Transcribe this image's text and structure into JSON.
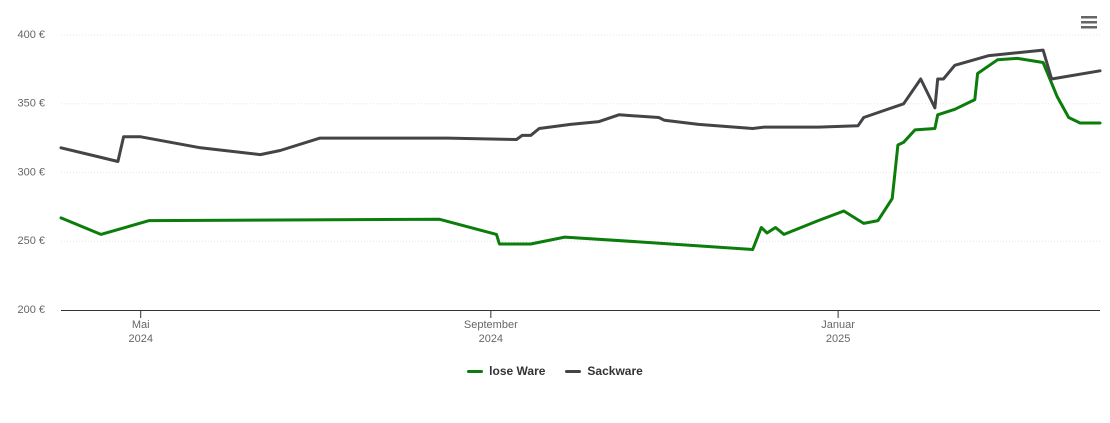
{
  "chart_data": {
    "type": "line",
    "series": [
      {
        "name": "lose Ware",
        "color": "#0a7d0a",
        "x": [
          "2024-04-03",
          "2024-04-17",
          "2024-05-04",
          "2024-08-14",
          "2024-09-03",
          "2024-09-04",
          "2024-09-15",
          "2024-09-27",
          "2024-10-27",
          "2024-12-02",
          "2024-12-05",
          "2024-12-07",
          "2024-12-10",
          "2024-12-13",
          "2024-12-25",
          "2025-01-03",
          "2025-01-10",
          "2025-01-15",
          "2025-01-20",
          "2025-01-22",
          "2025-01-24",
          "2025-01-28",
          "2025-02-04",
          "2025-02-05",
          "2025-02-11",
          "2025-02-18",
          "2025-02-19",
          "2025-02-26",
          "2025-03-05",
          "2025-03-14",
          "2025-03-19",
          "2025-03-23",
          "2025-03-27",
          "2025-04-03"
        ],
        "values": [
          267,
          255,
          265,
          266,
          255,
          248,
          248,
          253,
          249,
          244,
          260,
          256,
          260,
          255,
          265,
          272,
          263,
          265,
          281,
          320,
          322,
          331,
          332,
          342,
          346,
          353,
          372,
          382,
          383,
          380,
          355,
          340,
          336,
          336
        ]
      },
      {
        "name": "Sackware",
        "color": "#444448",
        "x": [
          "2024-04-03",
          "2024-04-15",
          "2024-04-23",
          "2024-04-25",
          "2024-05-01",
          "2024-05-22",
          "2024-06-12",
          "2024-06-19",
          "2024-07-03",
          "2024-08-17",
          "2024-09-10",
          "2024-09-12",
          "2024-09-15",
          "2024-09-18",
          "2024-09-29",
          "2024-10-09",
          "2024-10-16",
          "2024-10-30",
          "2024-11-01",
          "2024-11-13",
          "2024-12-02",
          "2024-12-06",
          "2024-12-25",
          "2025-01-08",
          "2025-01-10",
          "2025-01-24",
          "2025-01-30",
          "2025-02-04",
          "2025-02-05",
          "2025-02-07",
          "2025-02-11",
          "2025-02-23",
          "2025-03-14",
          "2025-03-17",
          "2025-04-03"
        ],
        "values": [
          318,
          312,
          308,
          326,
          326,
          318,
          313,
          316,
          325,
          325,
          324,
          327,
          327,
          332,
          335,
          337,
          342,
          340,
          338,
          335,
          332,
          333,
          333,
          334,
          340,
          350,
          368,
          347,
          368,
          368,
          378,
          385,
          389,
          368,
          374
        ]
      }
    ],
    "xlim": [
      "2024-04-03",
      "2025-04-03"
    ],
    "xticks": [
      {
        "value": "2024-05-01",
        "label": "Mai 2024"
      },
      {
        "value": "2024-09-01",
        "label": "September 2024"
      },
      {
        "value": "2025-01-01",
        "label": "Januar 2025"
      }
    ],
    "ylim": [
      200,
      400
    ],
    "yticks": [
      {
        "value": 200,
        "label": "200 €"
      },
      {
        "value": 250,
        "label": "250 €"
      },
      {
        "value": 300,
        "label": "300 €"
      },
      {
        "value": 350,
        "label": "350 €"
      },
      {
        "value": 400,
        "label": "400 €"
      }
    ],
    "grid": true
  }
}
